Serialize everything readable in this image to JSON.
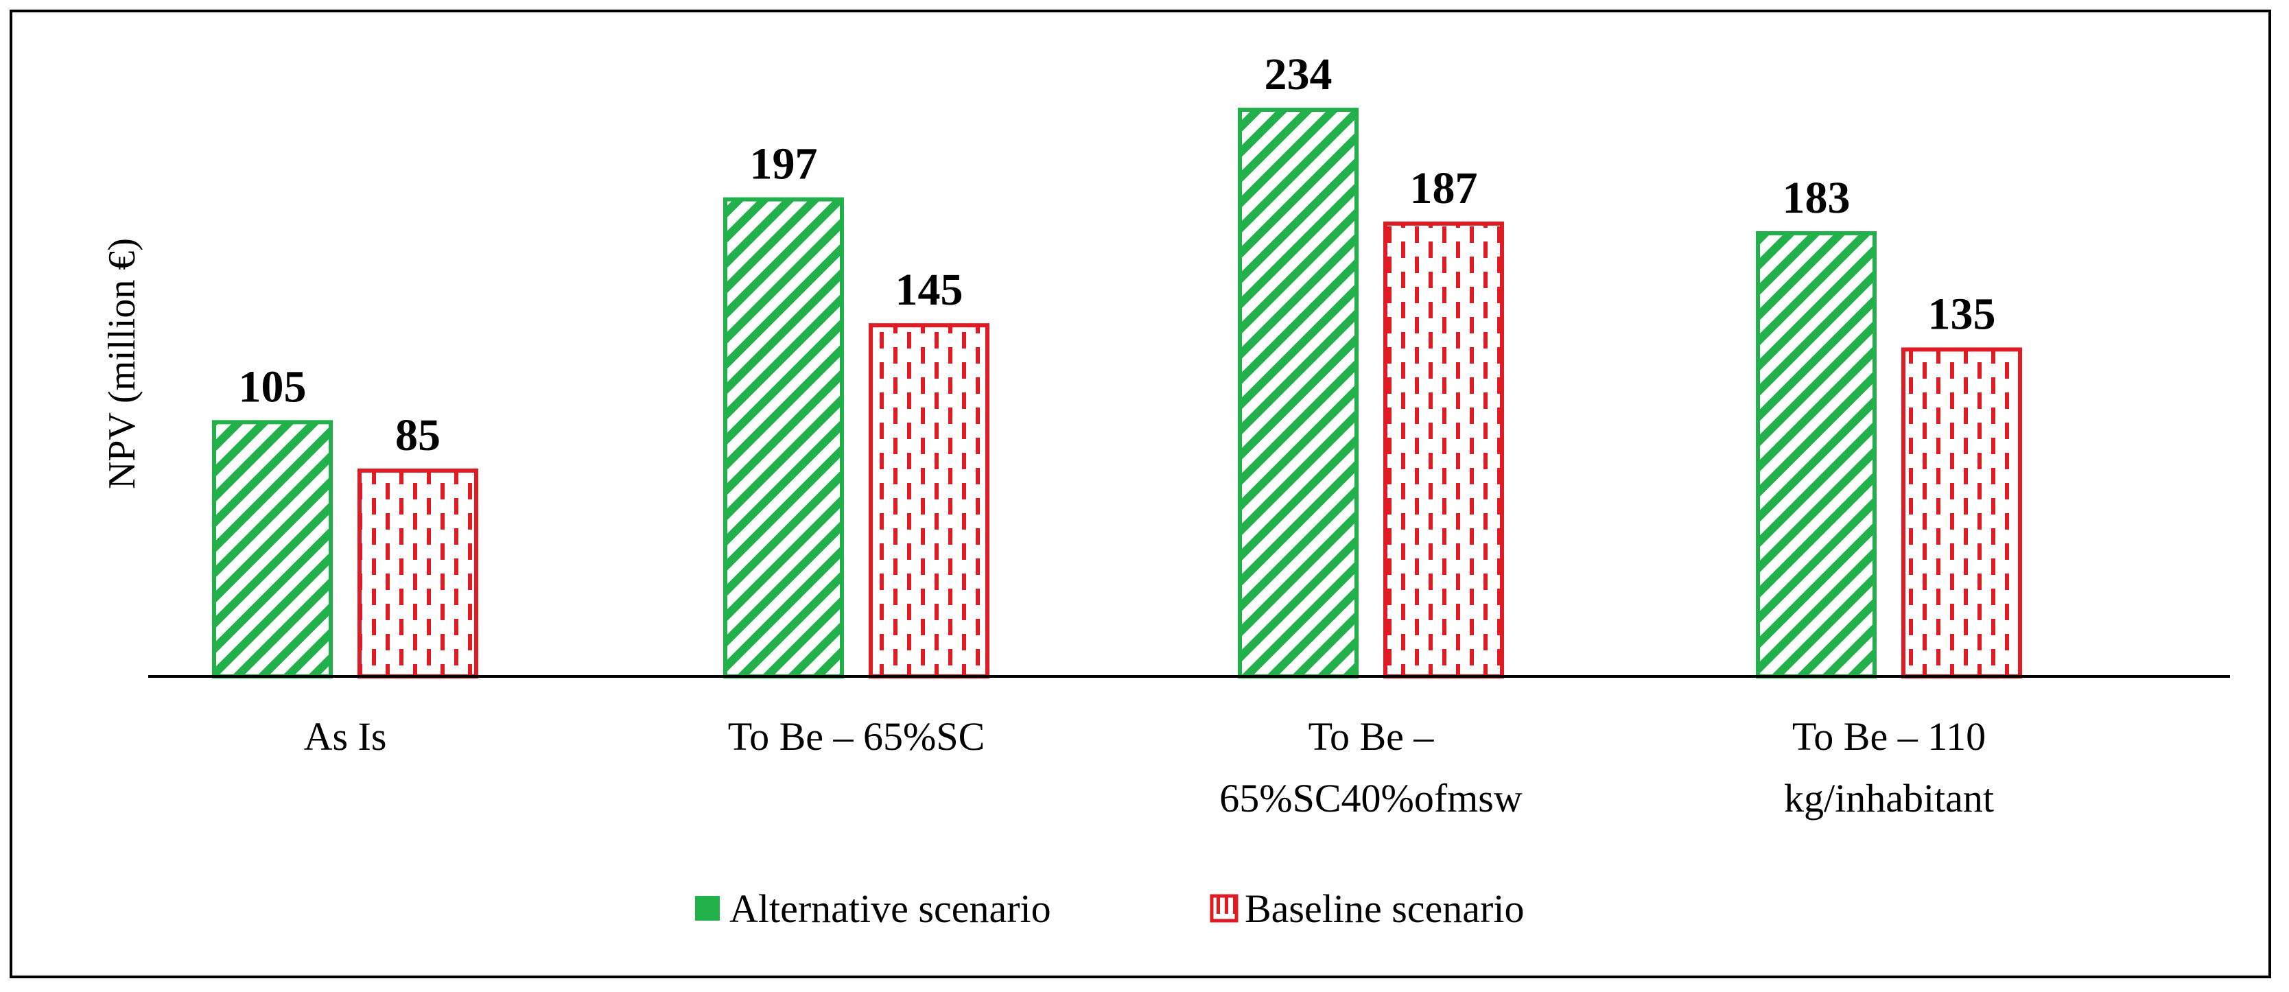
{
  "chart_data": {
    "type": "bar",
    "categories": [
      "As Is",
      "To Be – 65%SC",
      "To Be – 65%SC40%ofmsw",
      "To Be – 110 kg/inhabitant"
    ],
    "category_lines": [
      [
        "As Is"
      ],
      [
        "To Be – 65%SC"
      ],
      [
        "To Be –",
        "65%SC40%ofmsw"
      ],
      [
        "To Be – 110",
        "kg/inhabitant"
      ]
    ],
    "series": [
      {
        "name": "Alternative scenario",
        "values": [
          105,
          197,
          234,
          183
        ],
        "color": "#22b04b",
        "pattern": "diagonal"
      },
      {
        "name": "Baseline scenario",
        "values": [
          85,
          145,
          187,
          135
        ],
        "color": "#e01b24",
        "pattern": "dashed-vertical"
      }
    ],
    "ylabel": "NPV (million €)",
    "ylim": [
      0,
      240
    ],
    "legend_position": "bottom",
    "data_labels": true,
    "grid": false
  }
}
